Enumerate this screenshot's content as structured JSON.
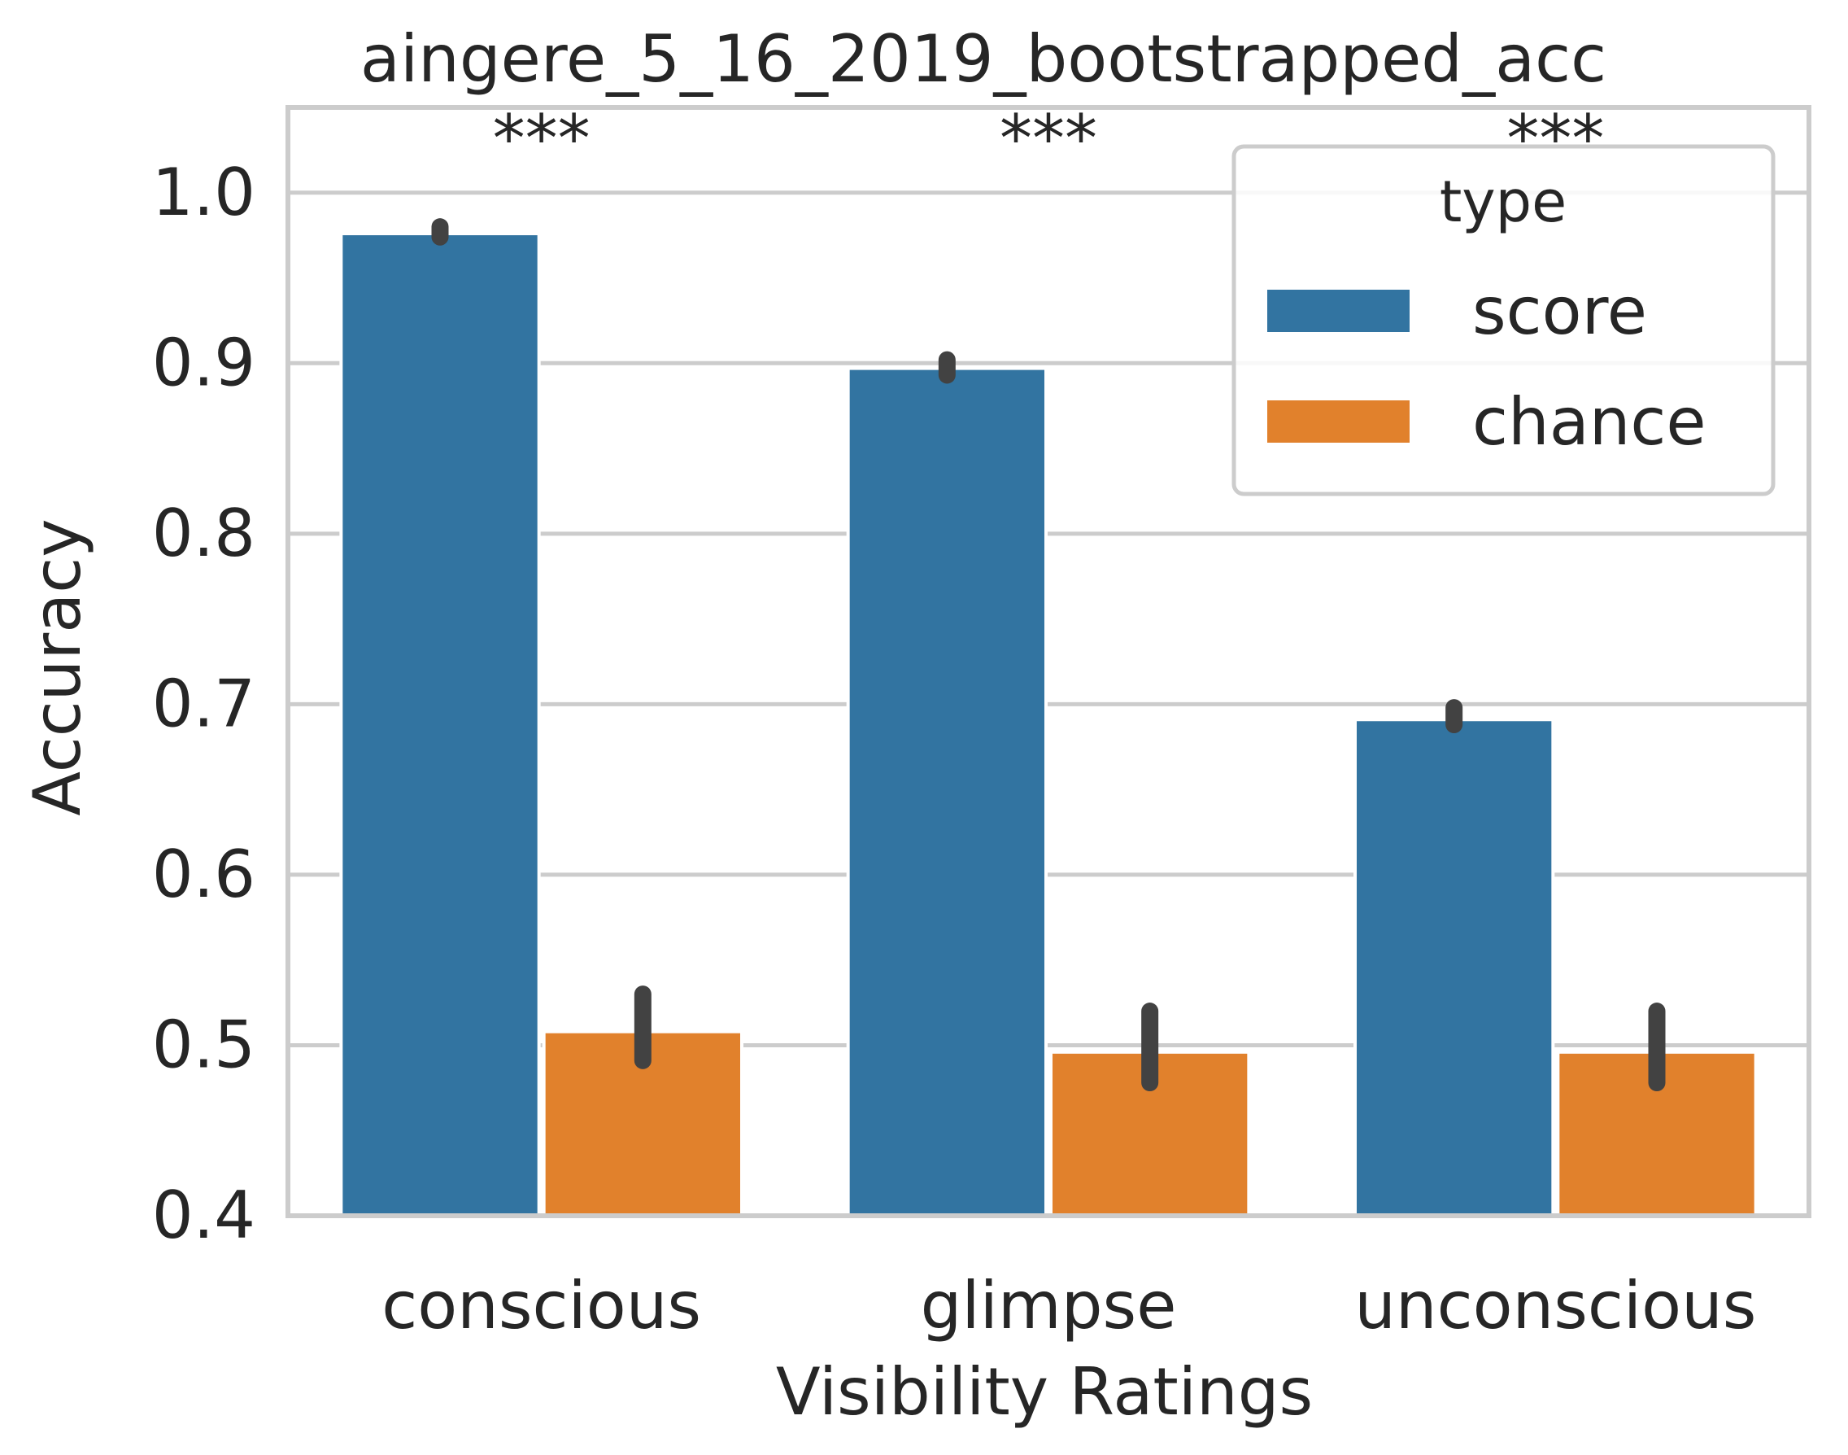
{
  "chart_data": {
    "type": "bar",
    "title": "aingere_5_16_2019_bootstrapped_acc",
    "xlabel": "Visibility Ratings",
    "ylabel": "Accuracy",
    "categories": [
      "conscious",
      "glimpse",
      "unconscious"
    ],
    "ylim": [
      0.4,
      1.05
    ],
    "yticks": [
      "0.4",
      "0.5",
      "0.6",
      "0.7",
      "0.8",
      "0.9",
      "1.0"
    ],
    "grid": true,
    "legend": {
      "title": "type",
      "position": "top-right"
    },
    "significance": [
      "***",
      "***",
      "***"
    ],
    "series": [
      {
        "name": "score",
        "color": "#3274a1",
        "values": [
          0.976,
          0.897,
          0.691
        ],
        "error_low": [
          0.974,
          0.893,
          0.688
        ],
        "error_high": [
          0.98,
          0.902,
          0.698
        ]
      },
      {
        "name": "chance",
        "color": "#e1812c",
        "values": [
          0.508,
          0.496,
          0.496
        ],
        "error_low": [
          0.491,
          0.478,
          0.478
        ],
        "error_high": [
          0.53,
          0.52,
          0.52
        ]
      }
    ]
  }
}
